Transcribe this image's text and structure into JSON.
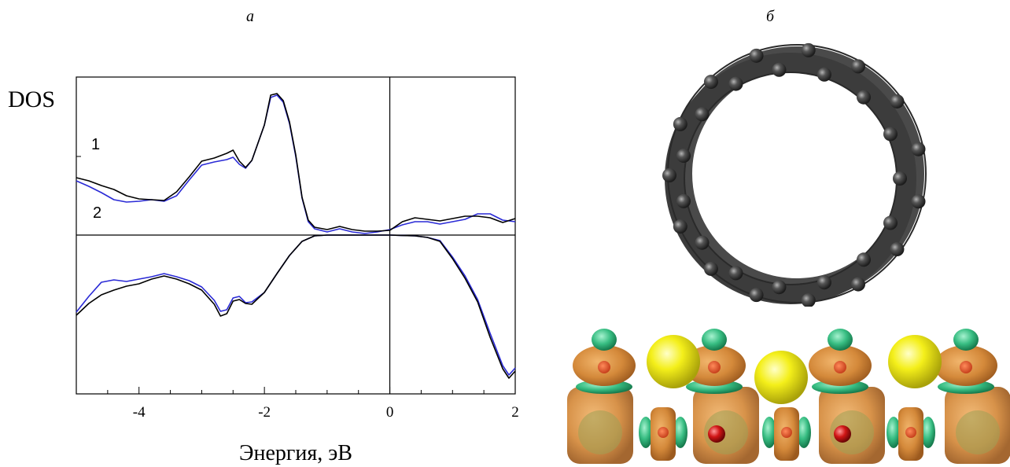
{
  "figure": {
    "panel_a_label": "а",
    "panel_b_label": "б"
  },
  "chart_data": {
    "type": "line",
    "ylabel": "DOS",
    "xlabel": "Энергия, эВ",
    "xlim": [
      -5,
      2
    ],
    "ylim": [
      -1.0,
      1.0
    ],
    "x_ticks": [
      -4,
      -2,
      0,
      2
    ],
    "x_tick_labels": [
      "-4",
      "-2",
      "0",
      "2"
    ],
    "grid": false,
    "reference_lines": {
      "vertical_at_x": 0,
      "horizontal_at_y": 0
    },
    "series": [
      {
        "name": "1",
        "color": "#000000",
        "upper": {
          "x": [
            -5.0,
            -4.8,
            -4.6,
            -4.4,
            -4.2,
            -4.0,
            -3.8,
            -3.6,
            -3.4,
            -3.2,
            -3.0,
            -2.8,
            -2.6,
            -2.5,
            -2.4,
            -2.3,
            -2.2,
            -2.0,
            -1.9,
            -1.8,
            -1.7,
            -1.6,
            -1.5,
            -1.4,
            -1.3,
            -1.2,
            -1.0,
            -0.8,
            -0.6,
            -0.4,
            -0.2,
            0.0,
            0.2,
            0.4,
            0.6,
            0.8,
            1.0,
            1.2,
            1.4,
            1.6,
            1.8,
            2.0
          ],
          "y": [
            0.73,
            0.69,
            0.63,
            0.58,
            0.5,
            0.46,
            0.45,
            0.44,
            0.55,
            0.74,
            0.94,
            0.98,
            1.04,
            1.08,
            0.94,
            0.86,
            0.95,
            1.4,
            1.78,
            1.8,
            1.71,
            1.44,
            1.02,
            0.48,
            0.19,
            0.1,
            0.07,
            0.11,
            0.07,
            0.05,
            0.05,
            0.06,
            0.17,
            0.22,
            0.2,
            0.18,
            0.21,
            0.24,
            0.24,
            0.22,
            0.16,
            0.21
          ]
        },
        "lower": {
          "x": [
            -5.0,
            -4.8,
            -4.6,
            -4.4,
            -4.2,
            -4.0,
            -3.8,
            -3.6,
            -3.4,
            -3.2,
            -3.0,
            -2.8,
            -2.7,
            -2.6,
            -2.5,
            -2.4,
            -2.3,
            -2.2,
            -2.0,
            -1.8,
            -1.6,
            -1.4,
            -1.2,
            -1.0,
            -0.5,
            0.0,
            0.4,
            0.6,
            0.8,
            1.0,
            1.2,
            1.4,
            1.6,
            1.8,
            1.9,
            2.0
          ],
          "y": [
            -1.02,
            -0.87,
            -0.76,
            -0.7,
            -0.65,
            -0.62,
            -0.56,
            -0.52,
            -0.56,
            -0.62,
            -0.7,
            -0.88,
            -1.03,
            -1.0,
            -0.84,
            -0.82,
            -0.87,
            -0.88,
            -0.73,
            -0.49,
            -0.26,
            -0.08,
            -0.01,
            0.0,
            0.0,
            0.0,
            -0.01,
            -0.03,
            -0.08,
            -0.3,
            -0.55,
            -0.85,
            -1.3,
            -1.7,
            -1.82,
            -1.73
          ]
        }
      },
      {
        "name": "2",
        "color": "#2a2ad6",
        "upper": {
          "x": [
            -5.0,
            -4.8,
            -4.6,
            -4.4,
            -4.2,
            -4.0,
            -3.8,
            -3.6,
            -3.4,
            -3.2,
            -3.0,
            -2.8,
            -2.6,
            -2.5,
            -2.4,
            -2.3,
            -2.2,
            -2.0,
            -1.9,
            -1.8,
            -1.7,
            -1.6,
            -1.5,
            -1.4,
            -1.3,
            -1.2,
            -1.0,
            -0.8,
            -0.6,
            -0.4,
            -0.2,
            0.0,
            0.2,
            0.4,
            0.6,
            0.8,
            1.0,
            1.2,
            1.4,
            1.6,
            1.8,
            2.0
          ],
          "y": [
            0.69,
            0.62,
            0.54,
            0.45,
            0.42,
            0.43,
            0.45,
            0.43,
            0.5,
            0.7,
            0.89,
            0.93,
            0.96,
            0.99,
            0.9,
            0.85,
            0.95,
            1.4,
            1.75,
            1.78,
            1.69,
            1.42,
            1.0,
            0.47,
            0.17,
            0.08,
            0.04,
            0.08,
            0.04,
            0.02,
            0.04,
            0.07,
            0.13,
            0.17,
            0.17,
            0.14,
            0.17,
            0.2,
            0.27,
            0.27,
            0.19,
            0.17
          ]
        },
        "lower": {
          "x": [
            -5.0,
            -4.8,
            -4.6,
            -4.4,
            -4.2,
            -4.0,
            -3.8,
            -3.6,
            -3.4,
            -3.2,
            -3.0,
            -2.8,
            -2.7,
            -2.6,
            -2.5,
            -2.4,
            -2.3,
            -2.2,
            -2.0,
            -1.8,
            -1.6,
            -1.4,
            -1.2,
            -1.0,
            -0.5,
            0.0,
            0.4,
            0.6,
            0.8,
            1.0,
            1.2,
            1.4,
            1.6,
            1.8,
            1.9,
            2.0
          ],
          "y": [
            -0.98,
            -0.78,
            -0.6,
            -0.57,
            -0.59,
            -0.56,
            -0.53,
            -0.49,
            -0.53,
            -0.58,
            -0.66,
            -0.83,
            -0.97,
            -0.95,
            -0.8,
            -0.78,
            -0.86,
            -0.85,
            -0.73,
            -0.49,
            -0.26,
            -0.08,
            -0.01,
            0.0,
            0.0,
            0.0,
            -0.01,
            -0.03,
            -0.07,
            -0.28,
            -0.52,
            -0.82,
            -1.25,
            -1.66,
            -1.78,
            -1.69
          ]
        }
      }
    ]
  },
  "structure_image": {
    "atom_colors": {
      "carbon": "#3a3a3a",
      "orbital_orange": "#d68a3a",
      "orbital_green": "#2fb87a",
      "sulfur_yellow": "#f2ee16",
      "center_red": "#c81414"
    }
  }
}
